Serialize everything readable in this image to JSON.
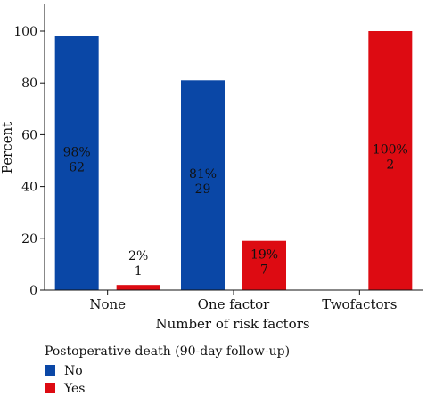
{
  "chart_data": {
    "type": "bar",
    "xlabel": "Number of risk factors",
    "ylabel": "Percent",
    "ylim": [
      0,
      100
    ],
    "yticks": [
      0,
      20,
      40,
      60,
      80,
      100
    ],
    "categories": [
      "None",
      "One factor",
      "Twofactors"
    ],
    "series": [
      {
        "name": "No",
        "color": "#0a47a6",
        "values": [
          98,
          81,
          null
        ],
        "labels": [
          [
            "98%",
            "62"
          ],
          [
            "81%",
            "29"
          ],
          null
        ]
      },
      {
        "name": "Yes",
        "color": "#dd0b12",
        "values": [
          2,
          19,
          100
        ],
        "labels": [
          [
            "2%",
            "1"
          ],
          [
            "19%",
            "7"
          ],
          [
            "100%",
            "2"
          ]
        ]
      }
    ],
    "legend": {
      "title": "Postoperative death (90-day follow-up)",
      "placement": "bottom-left"
    },
    "grid": false
  }
}
